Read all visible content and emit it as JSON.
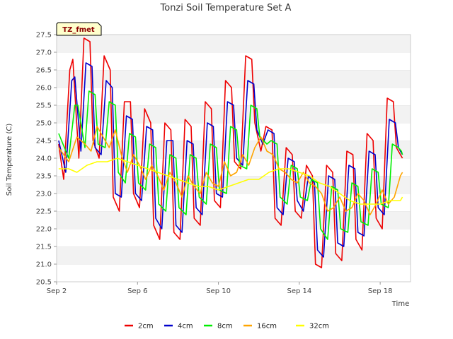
{
  "chart_data": {
    "type": "line",
    "title": "Tonzi Soil Temperature Set A",
    "xlabel": "Time",
    "ylabel": "Soil Temperature (C)",
    "badge": "TZ_fmet",
    "xlim": [
      2.0,
      19.5
    ],
    "ylim": [
      20.5,
      27.5
    ],
    "yticks": [
      20.5,
      21.0,
      21.5,
      22.0,
      22.5,
      23.0,
      23.5,
      24.0,
      24.5,
      25.0,
      25.5,
      26.0,
      26.5,
      27.0,
      27.5
    ],
    "xticks": [
      {
        "value": 2,
        "label": "Sep 2"
      },
      {
        "value": 6,
        "label": "Sep 6"
      },
      {
        "value": 10,
        "label": "Sep 10"
      },
      {
        "value": 14,
        "label": "Sep 14"
      },
      {
        "value": 18,
        "label": "Sep 18"
      }
    ],
    "grid": "horizontal bands",
    "legend_position": "bottom",
    "series": [
      {
        "name": "2cm",
        "color": "#ee0000",
        "x": [
          2.1,
          2.35,
          2.65,
          2.8,
          3.1,
          3.35,
          3.65,
          3.8,
          4.1,
          4.35,
          4.65,
          4.8,
          5.1,
          5.35,
          5.65,
          5.8,
          6.1,
          6.35,
          6.65,
          6.8,
          7.1,
          7.35,
          7.65,
          7.8,
          8.1,
          8.35,
          8.65,
          8.8,
          9.1,
          9.35,
          9.65,
          9.8,
          10.1,
          10.35,
          10.65,
          10.8,
          11.1,
          11.35,
          11.65,
          11.8,
          12.1,
          12.35,
          12.65,
          12.8,
          13.1,
          13.35,
          13.65,
          13.8,
          14.1,
          14.35,
          14.65,
          14.8,
          15.1,
          15.35,
          15.65,
          15.8,
          16.1,
          16.35,
          16.65,
          16.8,
          17.1,
          17.35,
          17.65,
          17.8,
          18.1,
          18.35,
          18.65,
          18.8,
          19.1
        ],
        "y": [
          24.4,
          23.4,
          26.5,
          26.8,
          24.0,
          27.4,
          27.3,
          24.5,
          24.0,
          26.9,
          26.5,
          22.9,
          22.5,
          25.6,
          25.6,
          23.0,
          22.6,
          25.4,
          25.0,
          22.1,
          21.7,
          25.0,
          24.8,
          21.9,
          21.7,
          25.1,
          24.9,
          22.3,
          22.1,
          25.6,
          25.4,
          22.8,
          22.6,
          26.2,
          26.0,
          23.9,
          23.7,
          26.9,
          26.8,
          25.0,
          24.2,
          24.9,
          24.8,
          22.3,
          22.1,
          24.3,
          24.1,
          22.5,
          22.3,
          23.8,
          23.5,
          21.0,
          20.9,
          23.8,
          23.6,
          21.3,
          21.1,
          24.2,
          24.1,
          21.7,
          21.4,
          24.7,
          24.5,
          22.3,
          22.0,
          25.7,
          25.6,
          24.3,
          24.0
        ]
      },
      {
        "name": "4cm",
        "color": "#0000cc",
        "x": [
          2.1,
          2.45,
          2.75,
          2.9,
          3.2,
          3.45,
          3.75,
          3.9,
          4.2,
          4.45,
          4.75,
          4.9,
          5.2,
          5.45,
          5.75,
          5.9,
          6.2,
          6.45,
          6.75,
          6.9,
          7.2,
          7.45,
          7.75,
          7.9,
          8.2,
          8.45,
          8.75,
          8.9,
          9.2,
          9.45,
          9.75,
          9.9,
          10.2,
          10.45,
          10.75,
          10.9,
          11.2,
          11.45,
          11.75,
          11.9,
          12.2,
          12.45,
          12.75,
          12.9,
          13.2,
          13.45,
          13.75,
          13.9,
          14.2,
          14.45,
          14.75,
          14.9,
          15.2,
          15.45,
          15.75,
          15.9,
          16.2,
          16.45,
          16.75,
          16.9,
          17.2,
          17.45,
          17.75,
          17.9,
          18.2,
          18.45,
          18.75,
          18.9,
          19.1
        ],
        "y": [
          24.5,
          23.6,
          26.2,
          26.3,
          24.2,
          26.7,
          26.6,
          24.3,
          24.1,
          26.2,
          26.0,
          23.0,
          22.9,
          25.2,
          25.1,
          23.0,
          22.8,
          24.9,
          24.8,
          22.3,
          22.0,
          24.5,
          24.5,
          22.1,
          21.9,
          24.5,
          24.4,
          22.6,
          22.4,
          25.0,
          24.9,
          23.0,
          22.9,
          25.6,
          25.5,
          24.0,
          23.8,
          26.2,
          26.1,
          24.8,
          24.4,
          24.8,
          24.7,
          22.6,
          22.4,
          24.0,
          23.9,
          22.8,
          22.5,
          23.5,
          23.3,
          21.4,
          21.2,
          23.5,
          23.4,
          21.6,
          21.5,
          23.8,
          23.7,
          21.9,
          21.8,
          24.2,
          24.1,
          22.6,
          22.4,
          25.1,
          25.0,
          24.3,
          24.1
        ]
      },
      {
        "name": "8cm",
        "color": "#00ee00",
        "x": [
          2.1,
          2.6,
          2.9,
          3.05,
          3.4,
          3.6,
          3.9,
          4.05,
          4.4,
          4.6,
          4.9,
          5.05,
          5.4,
          5.6,
          5.9,
          6.05,
          6.4,
          6.6,
          6.9,
          7.05,
          7.4,
          7.6,
          7.9,
          8.05,
          8.4,
          8.6,
          8.9,
          9.05,
          9.4,
          9.6,
          9.9,
          10.05,
          10.4,
          10.6,
          10.9,
          11.05,
          11.4,
          11.6,
          11.9,
          12.05,
          12.4,
          12.6,
          12.9,
          13.05,
          13.4,
          13.6,
          13.9,
          14.05,
          14.4,
          14.6,
          14.9,
          15.05,
          15.4,
          15.6,
          15.9,
          16.05,
          16.4,
          16.6,
          16.9,
          17.05,
          17.4,
          17.6,
          17.9,
          18.05,
          18.4,
          18.6,
          18.9,
          19.05,
          19.1
        ],
        "y": [
          24.7,
          24.0,
          25.5,
          25.5,
          24.3,
          25.9,
          25.8,
          24.4,
          24.3,
          25.6,
          25.5,
          23.6,
          23.3,
          24.7,
          24.6,
          23.3,
          23.1,
          24.4,
          24.3,
          22.7,
          22.5,
          24.1,
          24.0,
          22.6,
          22.4,
          24.1,
          24.0,
          22.9,
          22.7,
          24.4,
          24.3,
          23.1,
          23.0,
          24.9,
          24.8,
          23.8,
          23.7,
          25.5,
          25.4,
          24.6,
          24.4,
          24.5,
          24.4,
          22.9,
          22.7,
          23.8,
          23.7,
          22.9,
          22.8,
          23.4,
          23.3,
          22.0,
          21.7,
          23.2,
          23.1,
          22.0,
          21.9,
          23.3,
          23.2,
          22.2,
          22.1,
          23.7,
          23.6,
          22.7,
          22.6,
          24.4,
          24.3,
          24.2,
          24.1
        ]
      },
      {
        "name": "16cm",
        "color": "#ffa500",
        "x": [
          2.1,
          2.6,
          3.0,
          3.4,
          3.7,
          4.0,
          4.3,
          4.6,
          4.9,
          5.2,
          5.5,
          5.8,
          6.1,
          6.4,
          6.7,
          7.0,
          7.3,
          7.6,
          7.9,
          8.2,
          8.5,
          8.8,
          9.1,
          9.4,
          9.7,
          10.0,
          10.3,
          10.6,
          10.9,
          11.2,
          11.5,
          11.8,
          12.1,
          12.4,
          12.7,
          13.0,
          13.3,
          13.6,
          13.9,
          14.2,
          14.5,
          14.8,
          15.1,
          15.4,
          15.7,
          16.0,
          16.3,
          16.6,
          16.9,
          17.2,
          17.5,
          17.8,
          18.1,
          18.4,
          18.7,
          19.0,
          19.1
        ],
        "y": [
          24.3,
          23.9,
          24.6,
          24.4,
          24.2,
          24.9,
          24.6,
          24.3,
          24.8,
          24.1,
          23.6,
          24.1,
          23.8,
          23.4,
          23.8,
          23.5,
          23.1,
          23.6,
          23.3,
          22.9,
          23.5,
          23.2,
          23.0,
          23.6,
          23.3,
          23.2,
          23.9,
          23.5,
          23.6,
          24.1,
          23.8,
          24.3,
          24.6,
          24.2,
          24.1,
          23.7,
          23.6,
          23.4,
          23.3,
          23.6,
          23.3,
          23.2,
          23.0,
          22.5,
          22.6,
          22.9,
          22.5,
          22.6,
          23.0,
          22.8,
          22.4,
          22.7,
          23.1,
          22.7,
          22.9,
          23.5,
          23.6
        ]
      },
      {
        "name": "32cm",
        "color": "#ffff00",
        "x": [
          2.1,
          2.6,
          3.0,
          3.5,
          4.0,
          4.5,
          5.0,
          5.5,
          6.0,
          6.5,
          7.0,
          7.5,
          8.0,
          8.5,
          9.0,
          9.5,
          10.0,
          10.5,
          11.0,
          11.5,
          12.0,
          12.5,
          13.0,
          13.5,
          14.0,
          14.5,
          15.0,
          15.5,
          16.0,
          16.5,
          17.0,
          17.5,
          18.0,
          18.5,
          19.0,
          19.1
        ],
        "y": [
          23.7,
          23.7,
          23.6,
          23.8,
          23.9,
          23.9,
          24.0,
          23.9,
          23.8,
          23.7,
          23.6,
          23.5,
          23.4,
          23.3,
          23.2,
          23.2,
          23.1,
          23.2,
          23.3,
          23.4,
          23.4,
          23.6,
          23.7,
          23.7,
          23.6,
          23.5,
          23.3,
          23.2,
          23.0,
          22.8,
          22.7,
          22.7,
          22.7,
          22.8,
          22.8,
          22.9
        ]
      }
    ]
  }
}
